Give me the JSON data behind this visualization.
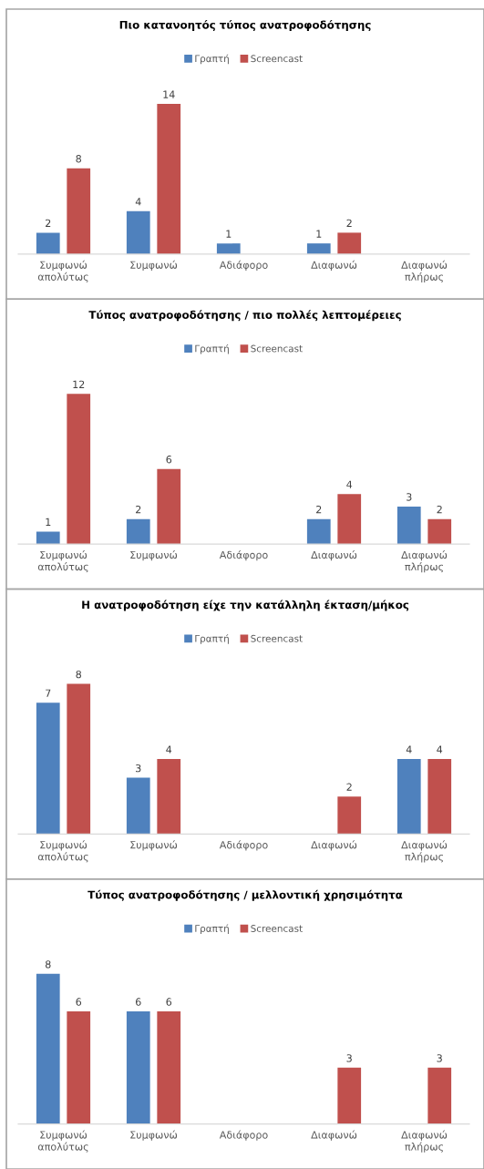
{
  "chart_data": [
    {
      "type": "bar",
      "title": "Πιο κατανοητός τύπος ανατροφοδότησης",
      "categories": [
        "Συμφωνώ\nαπολύτως",
        "Συμφωνώ",
        "Αδιάφορο",
        "Διαφωνώ",
        "Διαφωνώ\nπλήρως"
      ],
      "series": [
        {
          "name": "Γραπτή",
          "color": "#4f81bd",
          "values": [
            2,
            4,
            1,
            1,
            null
          ]
        },
        {
          "name": "Screencast",
          "color": "#c0504d",
          "values": [
            8,
            14,
            null,
            2,
            null
          ]
        }
      ],
      "data_labels": true,
      "legend": "top"
    },
    {
      "type": "bar",
      "title": "Τύπος ανατροφοδότησης / πιο πολλές λεπτομέρειες",
      "categories": [
        "Συμφωνώ\nαπολύτως",
        "Συμφωνώ",
        "Αδιάφορο",
        "Διαφωνώ",
        "Διαφωνώ\nπλήρως"
      ],
      "series": [
        {
          "name": "Γραπτή",
          "color": "#4f81bd",
          "values": [
            1,
            2,
            null,
            2,
            3
          ]
        },
        {
          "name": "Screencast",
          "color": "#c0504d",
          "values": [
            12,
            6,
            null,
            4,
            2
          ]
        }
      ],
      "data_labels": true,
      "legend": "top"
    },
    {
      "type": "bar",
      "title": "Η ανατροφοδότηση είχε την κατάλληλη έκταση/μήκος",
      "categories": [
        "Συμφωνώ\nαπολύτως",
        "Συμφωνώ",
        "Αδιάφορο",
        "Διαφωνώ",
        "Διαφωνώ\nπλήρως"
      ],
      "series": [
        {
          "name": "Γραπτή",
          "color": "#4f81bd",
          "values": [
            7,
            3,
            null,
            null,
            4
          ]
        },
        {
          "name": "Screencast",
          "color": "#c0504d",
          "values": [
            8,
            4,
            null,
            2,
            4
          ]
        }
      ],
      "data_labels": true,
      "legend": "top"
    },
    {
      "type": "bar",
      "title": "Τύπος ανατροφοδότησης / μελλοντική χρησιμότητα",
      "categories": [
        "Συμφωνώ\nαπολύτως",
        "Συμφωνώ",
        "Αδιάφορο",
        "Διαφωνώ",
        "Διαφωνώ\nπλήρως"
      ],
      "series": [
        {
          "name": "Γραπτή",
          "color": "#4f81bd",
          "values": [
            8,
            6,
            null,
            null,
            null
          ]
        },
        {
          "name": "Screencast",
          "color": "#c0504d",
          "values": [
            6,
            6,
            null,
            3,
            3
          ]
        }
      ],
      "data_labels": true,
      "legend": "top"
    }
  ]
}
